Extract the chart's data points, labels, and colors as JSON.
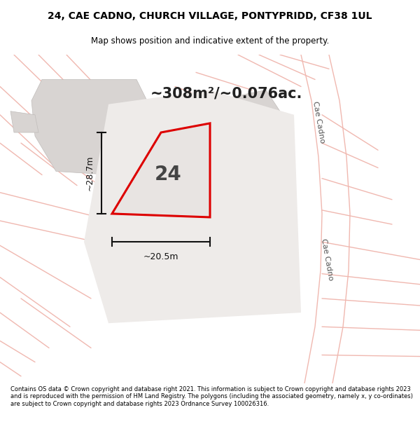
{
  "title_line1": "24, CAE CADNO, CHURCH VILLAGE, PONTYPRIDD, CF38 1UL",
  "title_line2": "Map shows position and indicative extent of the property.",
  "area_text": "~308m²/~0.076ac.",
  "number_label": "24",
  "dim_width": "~20.5m",
  "dim_height": "~28.7m",
  "footer": "Contains OS data © Crown copyright and database right 2021. This information is subject to Crown copyright and database rights 2023 and is reproduced with the permission of HM Land Registry. The polygons (including the associated geometry, namely x, y co-ordinates) are subject to Crown copyright and database rights 2023 Ordnance Survey 100026316.",
  "map_bg": "#f7f5f5",
  "road_color": "#f0b8b0",
  "building_color": "#d8d4d2",
  "building_edge": "#c0bcba",
  "property_fill": "#e8e4e2",
  "property_edge": "#dd0000",
  "street_label": "Cae Cadno",
  "dim_color": "#111111",
  "title_fontsize": 10,
  "subtitle_fontsize": 8.5,
  "area_fontsize": 15,
  "label_fontsize": 20,
  "footer_fontsize": 6.0
}
